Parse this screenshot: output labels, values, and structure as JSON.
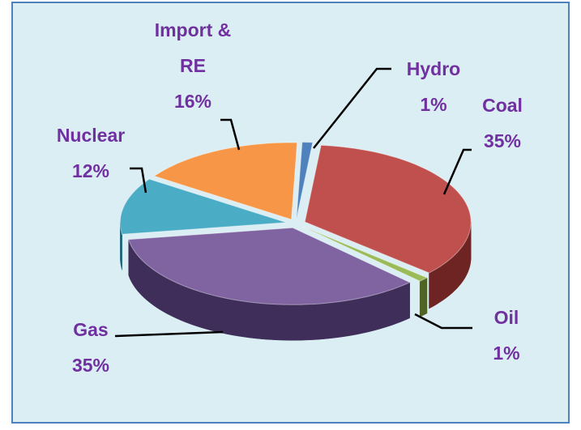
{
  "chart_data": {
    "type": "pie",
    "categories": [
      "Hydro",
      "Coal",
      "Oil",
      "Gas",
      "Nuclear",
      "Import & RE"
    ],
    "values": [
      1,
      35,
      1,
      35,
      12,
      16
    ],
    "value_labels": [
      "1%",
      "35%",
      "1%",
      "35%",
      "12%",
      "16%"
    ],
    "colors": [
      "#4f81bd",
      "#c0504d",
      "#9bbb59",
      "#8064a2",
      "#4bacc6",
      "#f79646"
    ],
    "side_colors": [
      "#2f5689",
      "#6e2422",
      "#4f6426",
      "#3f2e5a",
      "#21687c",
      "#a85a1c"
    ],
    "label_color": "#7030a0"
  }
}
